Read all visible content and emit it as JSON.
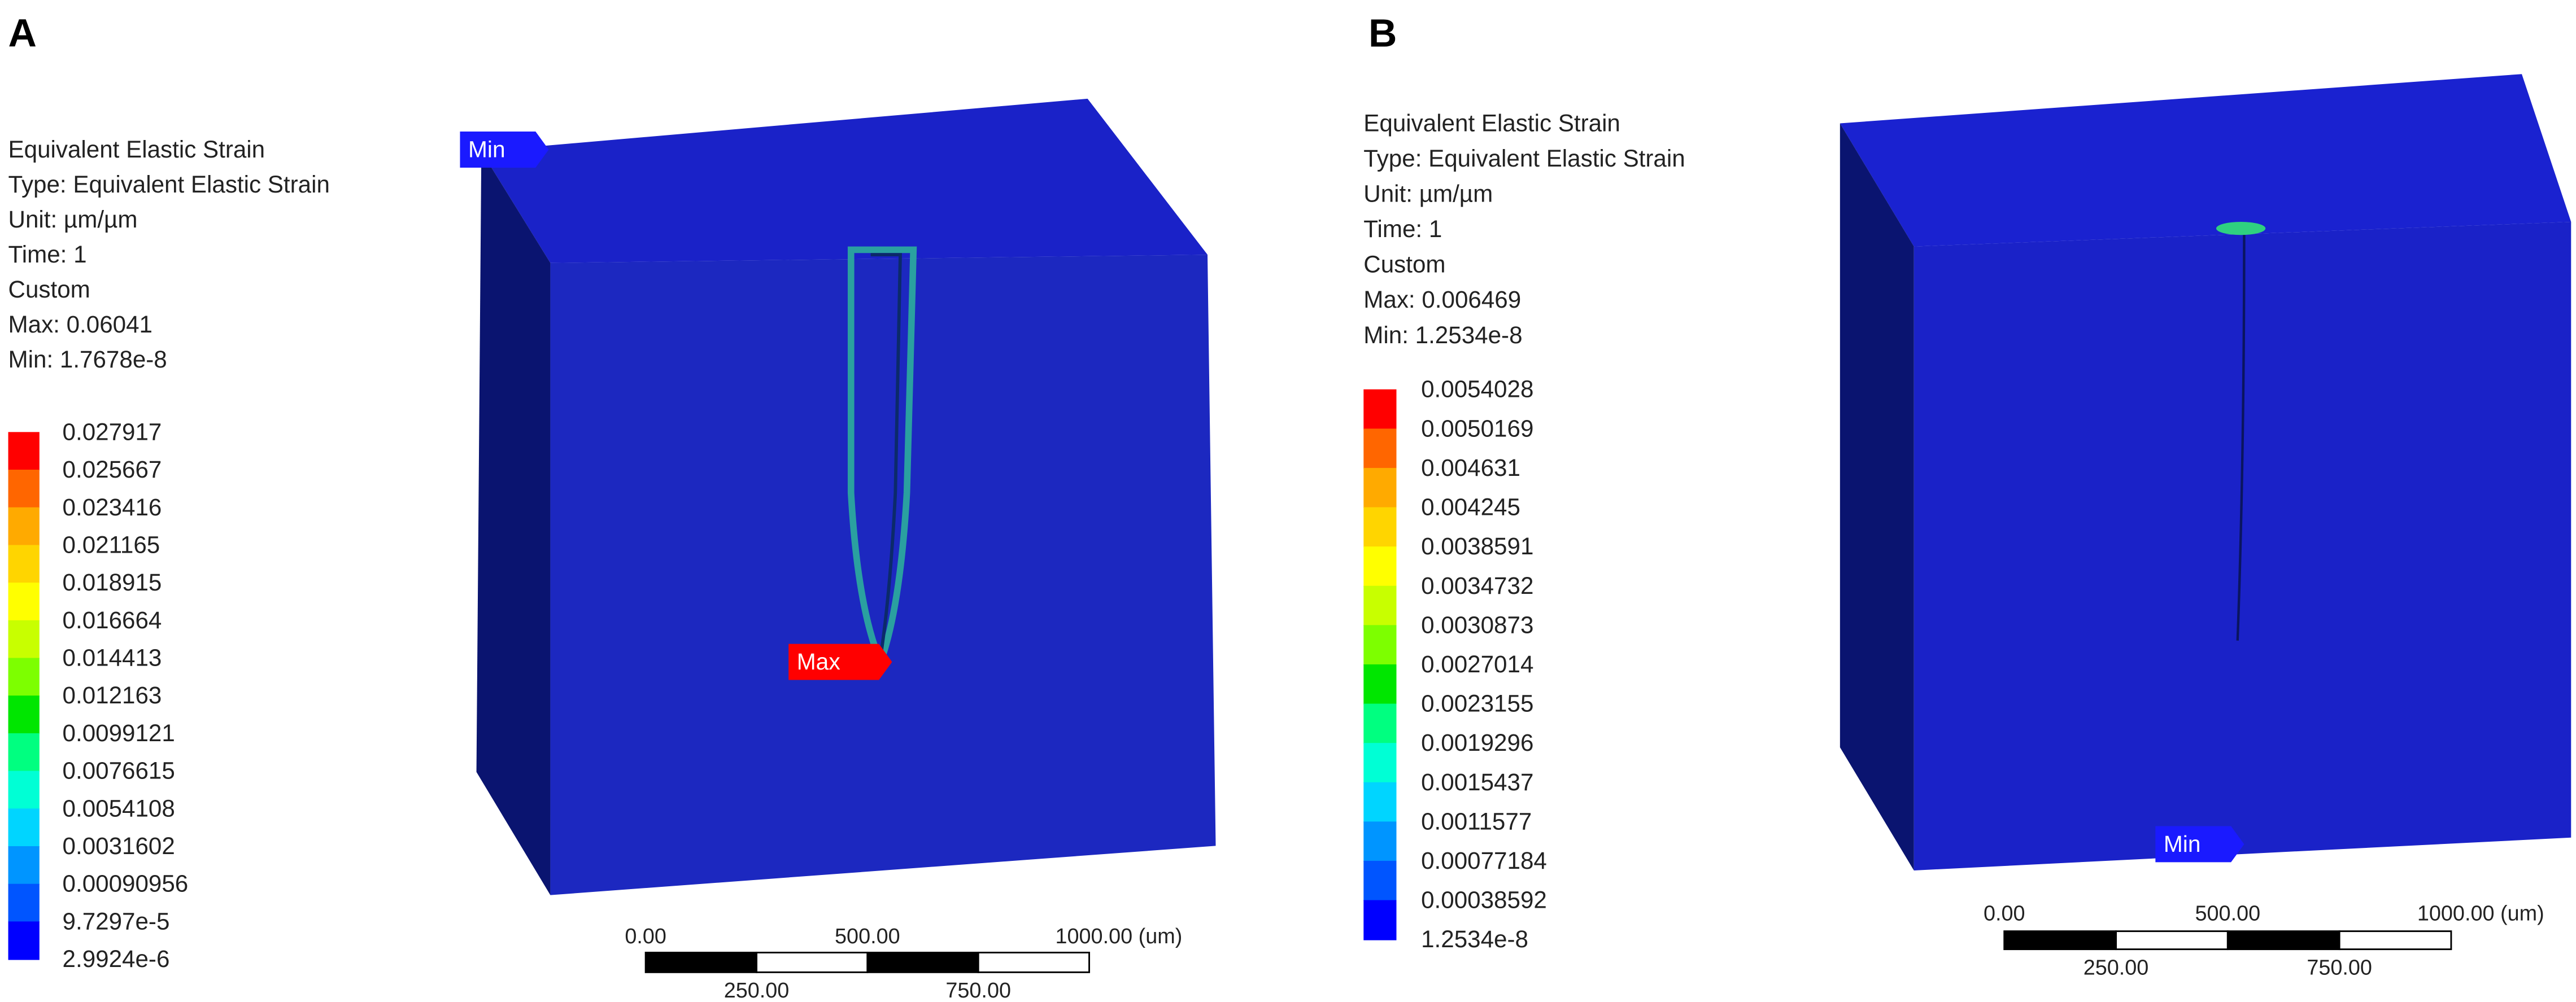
{
  "panels": [
    {
      "label": "A",
      "info": [
        "Equivalent Elastic Strain",
        "Type: Equivalent Elastic Strain",
        "Unit: µm/µm",
        "Time: 1",
        "Custom",
        "Max: 0.06041",
        "Min: 1.7678e-8"
      ],
      "legend": {
        "labels": [
          "0.027917",
          "0.025667",
          "0.023416",
          "0.021165",
          "0.018915",
          "0.016664",
          "0.014413",
          "0.012163",
          "0.0099121",
          "0.0076615",
          "0.0054108",
          "0.0031602",
          "0.00090956",
          "9.7297e-5",
          "2.9924e-6"
        ],
        "colors": [
          "#ff0000",
          "#ff6600",
          "#ffaa00",
          "#ffd500",
          "#ffff00",
          "#c8ff00",
          "#7dff00",
          "#00e600",
          "#00ff80",
          "#00ffd5",
          "#00d5ff",
          "#0095ff",
          "#0055ff",
          "#0000ff"
        ]
      },
      "markers": [
        {
          "text": "Min",
          "color": "#1a1aff"
        },
        {
          "text": "Max",
          "color": "#ff0000"
        }
      ],
      "scale": {
        "top": [
          "0.00",
          "500.00",
          "1000.00 (um)"
        ],
        "bottom": [
          "250.00",
          "750.00"
        ]
      }
    },
    {
      "label": "B",
      "info": [
        "Equivalent Elastic Strain",
        "Type: Equivalent Elastic Strain",
        "Unit: µm/µm",
        "Time: 1",
        "Custom",
        "Max: 0.006469",
        "Min: 1.2534e-8"
      ],
      "legend": {
        "labels": [
          "0.0054028",
          "0.0050169",
          "0.004631",
          "0.004245",
          "0.0038591",
          "0.0034732",
          "0.0030873",
          "0.0027014",
          "0.0023155",
          "0.0019296",
          "0.0015437",
          "0.0011577",
          "0.00077184",
          "0.00038592",
          "1.2534e-8"
        ],
        "colors": [
          "#ff0000",
          "#ff6600",
          "#ffaa00",
          "#ffd500",
          "#ffff00",
          "#c8ff00",
          "#7dff00",
          "#00e600",
          "#00ff80",
          "#00ffd5",
          "#00d5ff",
          "#0095ff",
          "#0055ff",
          "#0000ff"
        ]
      },
      "markers": [
        {
          "text": "Min",
          "color": "#1a1aff"
        }
      ],
      "scale": {
        "top": [
          "0.00",
          "500.00",
          "1000.00 (um)"
        ],
        "bottom": [
          "250.00",
          "750.00"
        ]
      }
    }
  ]
}
